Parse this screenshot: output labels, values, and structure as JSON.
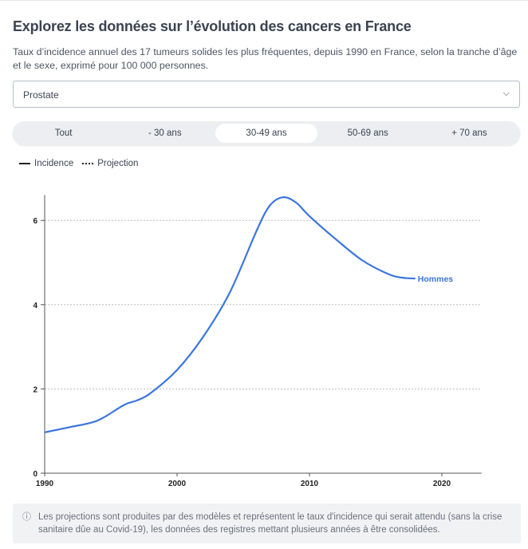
{
  "header": {
    "title": "Explorez les données sur l’évolution des cancers en France",
    "subtitle": "Taux d’incidence annuel des 17 tumeurs solides les plus fréquentes, depuis 1990 en France, selon la tranche d’âge et le sexe, exprimé pour 100 000 personnes."
  },
  "select": {
    "value": "Prostate"
  },
  "tabs": [
    {
      "label": "Tout"
    },
    {
      "label": "- 30 ans"
    },
    {
      "label": "30-49 ans",
      "active": true
    },
    {
      "label": "50-69 ans"
    },
    {
      "label": "+ 70 ans"
    }
  ],
  "legend": {
    "incidence": "Incidence",
    "projection": "Projection"
  },
  "note": "Les projections sont produites par des modèles et représentent le taux d'incidence qui serait attendu (sans la crise sanitaire dûe au Covid-19), les données des registres mettant plusieurs années à être consolidées.",
  "chart_data": {
    "type": "line",
    "xlim": [
      1990,
      2023
    ],
    "ylim": [
      0,
      6.6
    ],
    "xticks": [
      "1990",
      "2000",
      "2010",
      "2020"
    ],
    "yticks": [
      "0",
      "2",
      "4",
      "6"
    ],
    "grid": "horizontal dotted",
    "series": [
      {
        "name": "Hommes",
        "color": "#3a76e0",
        "x": [
          1990,
          1992,
          1994,
          1996,
          1997,
          1998,
          2000,
          2002,
          2004,
          2006,
          2007,
          2008,
          2009,
          2010,
          2012,
          2014,
          2016,
          2017,
          2018
        ],
        "y": [
          0.97,
          1.1,
          1.25,
          1.62,
          1.73,
          1.9,
          2.45,
          3.25,
          4.3,
          5.75,
          6.35,
          6.55,
          6.42,
          6.1,
          5.55,
          5.05,
          4.72,
          4.64,
          4.62
        ]
      }
    ]
  }
}
